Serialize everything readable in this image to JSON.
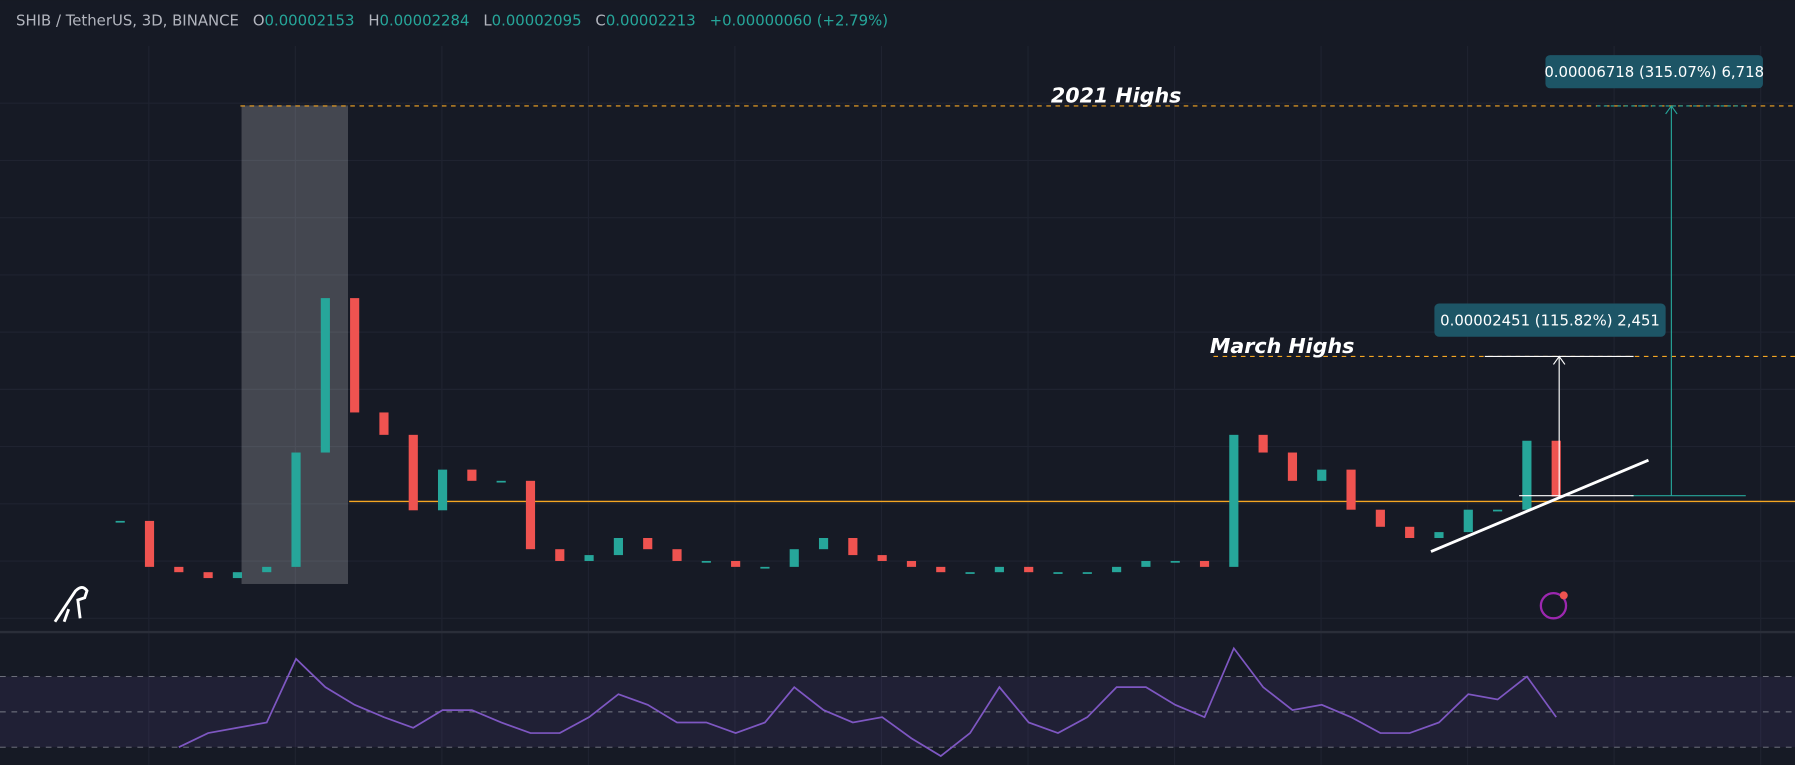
{
  "header": {
    "symbol": "SHIB / TetherUS, 3D, BINANCE",
    "o_label": "O",
    "open": 2.153e-05,
    "h_label": "H",
    "high": 2.284e-05,
    "l_label": "L",
    "low": 2.095e-05,
    "c_label": "C",
    "close": 2.213e-05,
    "change": "+0.00000060 (+2.79%)"
  },
  "chart_data": [
    {
      "type": "candlestick",
      "values": [
        1.8e-05,
        1.02e-05,
        9.3e-06,
        8.3e-06,
        9.3e-06,
        1.02e-05,
        2.96e-05,
        5.58e-05,
        3.64e-05,
        3.26e-05,
        1.98e-05,
        2.67e-05,
        2.48e-05,
        2.48e-05,
        1.32e-05,
        1.12e-05,
        1.22e-05,
        1.51e-05,
        1.32e-05,
        1.12e-05,
        1.12e-05,
        1.02e-05,
        1.02e-05,
        1.32e-05,
        1.51e-05,
        1.22e-05,
        1.12e-05,
        1.02e-05,
        9.3e-06,
        9.3e-06,
        1.02e-05,
        9.3e-06,
        9.3e-06,
        9.3e-06,
        1.02e-05,
        1.12e-05,
        1.12e-05,
        1.02e-05,
        3.26e-05,
        2.96e-05,
        2.48e-05,
        2.67e-05,
        1.99e-05,
        1.7e-05,
        1.51e-05,
        1.61e-05,
        1.99e-05,
        1.99e-05,
        3.16e-05,
        2.213e-05
      ],
      "ylim": [
        5e-07,
        9.47e-05
      ],
      "color_up": "#26a69a",
      "color_down": "#ef5350",
      "annotations": [
        {
          "text": "2021 Highs",
          "value": 8.84e-05
        },
        {
          "text": "March Highs",
          "value": 4.59e-05
        }
      ],
      "support": 2.13e-05,
      "measures": [
        {
          "label": "0.00006718 (315.07%) 6,718"
        },
        {
          "label": "0.00002451 (115.82%) 2,451"
        }
      ],
      "trendline": [
        1.28e-05,
        2.83e-05
      ]
    },
    {
      "type": "line",
      "values": [
        null,
        null,
        30,
        38,
        41,
        44,
        80,
        64,
        54,
        47,
        41,
        51,
        51,
        44,
        38,
        38,
        47,
        60,
        54,
        44,
        44,
        38,
        44,
        64,
        51,
        44,
        47,
        35,
        25,
        38,
        64,
        44,
        38,
        47,
        64,
        64,
        54,
        47,
        86,
        64,
        51,
        54,
        47,
        38,
        38,
        44,
        60,
        57,
        70,
        47
      ],
      "ylim": [
        20,
        90
      ],
      "levels": [
        30,
        50,
        70
      ],
      "color": "#7e57c2"
    }
  ]
}
